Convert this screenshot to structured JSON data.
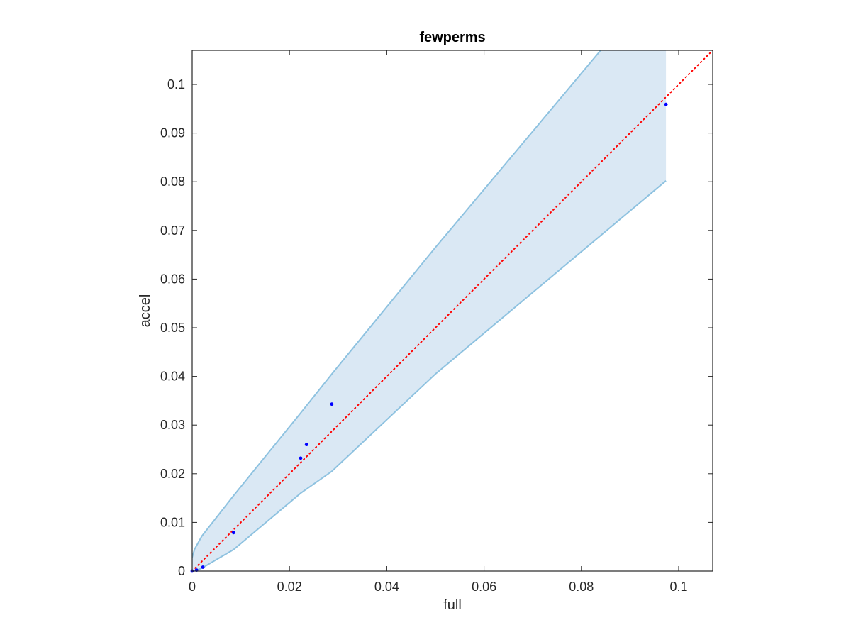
{
  "chart_data": {
    "type": "scatter",
    "title": "fewperms",
    "xlabel": "full",
    "ylabel": "accel",
    "xlim": [
      0,
      0.107
    ],
    "ylim": [
      0,
      0.107
    ],
    "xticks": [
      0,
      0.02,
      0.04,
      0.06,
      0.08,
      0.1
    ],
    "yticks": [
      0,
      0.01,
      0.02,
      0.03,
      0.04,
      0.05,
      0.06,
      0.07,
      0.08,
      0.09,
      0.1
    ],
    "xtick_labels": [
      "0",
      "0.02",
      "0.04",
      "0.06",
      "0.08",
      "0.1"
    ],
    "ytick_labels": [
      "0",
      "0.01",
      "0.02",
      "0.03",
      "0.04",
      "0.05",
      "0.06",
      "0.07",
      "0.08",
      "0.09",
      "0.1"
    ],
    "grid": false,
    "points": {
      "x": [
        0,
        0.0009,
        0.0022,
        0.0085,
        0.0223,
        0.0235,
        0.0287,
        0.0974
      ],
      "y": [
        0,
        0.0002,
        0.0008,
        0.0079,
        0.0232,
        0.026,
        0.0343,
        0.0959
      ],
      "color": "#0000ff"
    },
    "reference_line": {
      "x": [
        0,
        0.107
      ],
      "y": [
        0,
        0.107
      ],
      "color": "#ff0000",
      "style": "dotted"
    },
    "confidence_band": {
      "x": [
        0,
        0.0005,
        0.002,
        0.0085,
        0.0223,
        0.0287,
        0.05,
        0.0974
      ],
      "upper": [
        0.0028,
        0.0045,
        0.0072,
        0.0155,
        0.0325,
        0.0405,
        0.0665,
        0.123
      ],
      "lower": [
        0,
        0,
        0.0006,
        0.0044,
        0.016,
        0.0205,
        0.0405,
        0.0802
      ],
      "fill_color": "#dae8f4",
      "edge_color": "#8ec2e0"
    }
  }
}
